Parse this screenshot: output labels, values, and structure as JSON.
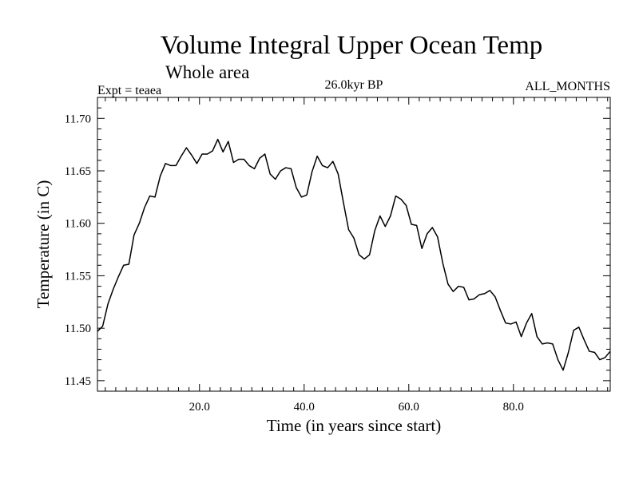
{
  "chart_data": {
    "type": "line",
    "title": "Volume Integral Upper Ocean Temp",
    "subtitle": "Whole area",
    "annotations": {
      "experiment": "Expt = teaea",
      "period": "26.0kyr BP",
      "months": "ALL_MONTHS"
    },
    "xlabel": "Time (in years since start)",
    "ylabel": "Temperature (in C)",
    "xlim": [
      0.5,
      98.5
    ],
    "ylim": [
      11.44,
      11.72
    ],
    "x_ticks": [
      20,
      40,
      60,
      80
    ],
    "x_tick_labels": [
      "20.0",
      "40.0",
      "60.0",
      "80.0"
    ],
    "y_ticks": [
      11.45,
      11.5,
      11.55,
      11.6,
      11.65,
      11.7
    ],
    "y_tick_labels": [
      "11.45",
      "11.50",
      "11.55",
      "11.60",
      "11.65",
      "11.70"
    ],
    "grid": false,
    "series": [
      {
        "name": "Temperature",
        "color": "#000000",
        "x_start": 0.5,
        "x_step": 1,
        "values": [
          11.497,
          11.502,
          11.523,
          11.537,
          11.549,
          11.56,
          11.561,
          11.589,
          11.6,
          11.615,
          11.626,
          11.625,
          11.645,
          11.657,
          11.655,
          11.655,
          11.664,
          11.672,
          11.665,
          11.657,
          11.666,
          11.666,
          11.669,
          11.68,
          11.668,
          11.678,
          11.658,
          11.661,
          11.661,
          11.655,
          11.652,
          11.662,
          11.666,
          11.647,
          11.642,
          11.65,
          11.653,
          11.652,
          11.634,
          11.625,
          11.627,
          11.649,
          11.664,
          11.655,
          11.653,
          11.659,
          11.647,
          11.62,
          11.594,
          11.586,
          11.57,
          11.566,
          11.57,
          11.593,
          11.607,
          11.597,
          11.607,
          11.626,
          11.623,
          11.617,
          11.599,
          11.598,
          11.576,
          11.59,
          11.596,
          11.587,
          11.562,
          11.542,
          11.535,
          11.54,
          11.539,
          11.527,
          11.528,
          11.532,
          11.533,
          11.536,
          11.53,
          11.517,
          11.505,
          11.504,
          11.506,
          11.492,
          11.505,
          11.514,
          11.492,
          11.485,
          11.486,
          11.485,
          11.47,
          11.46,
          11.477,
          11.498,
          11.501,
          11.489,
          11.478,
          11.477,
          11.47,
          11.472,
          11.478
        ]
      }
    ]
  }
}
